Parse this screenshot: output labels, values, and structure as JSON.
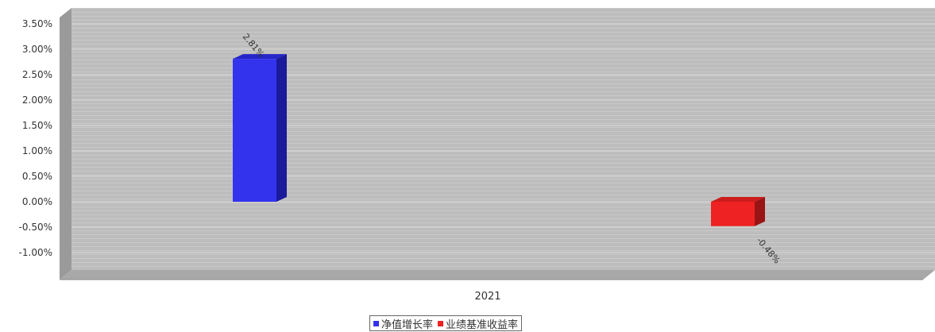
{
  "chart_data": {
    "type": "bar",
    "categories": [
      "2021"
    ],
    "series": [
      {
        "name": "净值增长率",
        "values": [
          2.81
        ],
        "label": "2.81%",
        "color": "#3333ee"
      },
      {
        "name": "业绩基准收益率",
        "values": [
          -0.48
        ],
        "label": "-0.48%",
        "color": "#ee2222"
      }
    ],
    "yticks": [
      "3.50%",
      "3.00%",
      "2.50%",
      "2.00%",
      "1.50%",
      "1.00%",
      "0.50%",
      "0.00%",
      "-0.50%",
      "-1.00%"
    ],
    "ylim": [
      -1.5,
      3.75
    ],
    "grid": true,
    "legend_position": "bottom-center"
  }
}
